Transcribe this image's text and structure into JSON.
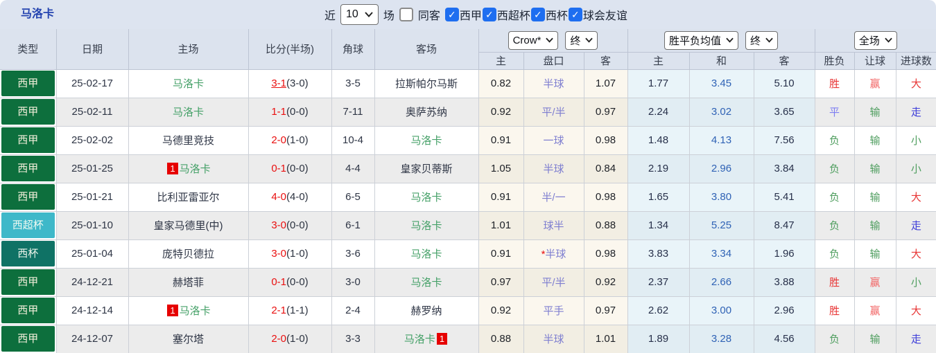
{
  "palette": {
    "topbar_bg": "#dde4f0",
    "header_bg": "#dce3ee",
    "title_blue": "#2544b0",
    "dark_text": "#2e3545",
    "score_red": "#e90f0f",
    "team_green": "#44a067",
    "handicap_violet": "#7e7ed0",
    "avg_draw_blue": "#2f62b5",
    "checkbox_blue": "#1e6ef0",
    "crow_bg": "#fbf7ee",
    "avg_bg": "#e9f4f9",
    "row_alt_bg": "#ececec",
    "result_red": "#e83535",
    "result_pink": "#f26666",
    "result_green": "#4f9e5f",
    "result_violet": "#7d7df2",
    "result_blue": "#3c3cd9",
    "badge_red": "#e60000",
    "league_colors": {
      "西甲": {
        "bg": "#0d6f3d",
        "text": "#f3efdb"
      },
      "西超杯": {
        "bg": "#3eb8c9",
        "text": "#f0faf2"
      },
      "西杯": {
        "bg": "#0f7265",
        "text": "#eef5ec"
      }
    }
  },
  "topbar": {
    "team_title": "马洛卡",
    "recent_label": "近",
    "count_value": "10",
    "matches_label": "场",
    "same_away_label": "同客",
    "same_away_checked": false,
    "filters": [
      {
        "label": "西甲",
        "checked": true
      },
      {
        "label": "西超杯",
        "checked": true
      },
      {
        "label": "西杯",
        "checked": true
      },
      {
        "label": "球会友谊",
        "checked": true
      }
    ]
  },
  "header": {
    "type": "类型",
    "date": "日期",
    "home": "主场",
    "score": "比分(半场)",
    "corner": "角球",
    "away": "客场",
    "odds_source_select": "Crow*",
    "odds_state_select": "终",
    "avg_select": "胜平负均值",
    "avg_state_select": "终",
    "scope_select": "全场",
    "sub_odds_home": "主",
    "sub_handicap": "盘口",
    "sub_odds_away": "客",
    "sub_avg_home": "主",
    "sub_avg_draw": "和",
    "sub_avg_away": "客",
    "sub_winloss": "胜负",
    "sub_handicap_result": "让球",
    "sub_goals": "进球数"
  },
  "rows": [
    {
      "league": "西甲",
      "date": "25-02-17",
      "home": {
        "name": "马洛卡",
        "green": true,
        "badge": null,
        "badge_pos": null
      },
      "score_ft": "3-1",
      "score_ht": "(3-0)",
      "score_underline": true,
      "corner": "3-5",
      "away": {
        "name": "拉斯帕尔马斯",
        "green": false,
        "badge": null,
        "badge_pos": null
      },
      "odds_home": "0.82",
      "handicap": "半球",
      "handicap_star": false,
      "odds_away": "1.07",
      "avg_home": "1.77",
      "avg_draw": "3.45",
      "avg_away": "5.10",
      "res_wl": {
        "text": "胜",
        "color": "red"
      },
      "res_let": {
        "text": "赢",
        "color": "pink"
      },
      "res_goal": {
        "text": "大",
        "color": "red"
      }
    },
    {
      "league": "西甲",
      "date": "25-02-11",
      "home": {
        "name": "马洛卡",
        "green": true,
        "badge": null,
        "badge_pos": null
      },
      "score_ft": "1-1",
      "score_ht": "(0-0)",
      "score_underline": false,
      "corner": "7-11",
      "away": {
        "name": "奥萨苏纳",
        "green": false,
        "badge": null,
        "badge_pos": null
      },
      "odds_home": "0.92",
      "handicap": "平/半",
      "handicap_star": false,
      "odds_away": "0.97",
      "avg_home": "2.24",
      "avg_draw": "3.02",
      "avg_away": "3.65",
      "res_wl": {
        "text": "平",
        "color": "violet"
      },
      "res_let": {
        "text": "输",
        "color": "green"
      },
      "res_goal": {
        "text": "走",
        "color": "blue"
      }
    },
    {
      "league": "西甲",
      "date": "25-02-02",
      "home": {
        "name": "马德里竞技",
        "green": false,
        "badge": null,
        "badge_pos": null
      },
      "score_ft": "2-0",
      "score_ht": "(1-0)",
      "score_underline": false,
      "corner": "10-4",
      "away": {
        "name": "马洛卡",
        "green": true,
        "badge": null,
        "badge_pos": null
      },
      "odds_home": "0.91",
      "handicap": "一球",
      "handicap_star": false,
      "odds_away": "0.98",
      "avg_home": "1.48",
      "avg_draw": "4.13",
      "avg_away": "7.56",
      "res_wl": {
        "text": "负",
        "color": "green"
      },
      "res_let": {
        "text": "输",
        "color": "green"
      },
      "res_goal": {
        "text": "小",
        "color": "green"
      }
    },
    {
      "league": "西甲",
      "date": "25-01-25",
      "home": {
        "name": "马洛卡",
        "green": true,
        "badge": "1",
        "badge_pos": "before"
      },
      "score_ft": "0-1",
      "score_ht": "(0-0)",
      "score_underline": false,
      "corner": "4-4",
      "away": {
        "name": "皇家贝蒂斯",
        "green": false,
        "badge": null,
        "badge_pos": null
      },
      "odds_home": "1.05",
      "handicap": "半球",
      "handicap_star": false,
      "odds_away": "0.84",
      "avg_home": "2.19",
      "avg_draw": "2.96",
      "avg_away": "3.84",
      "res_wl": {
        "text": "负",
        "color": "green"
      },
      "res_let": {
        "text": "输",
        "color": "green"
      },
      "res_goal": {
        "text": "小",
        "color": "green"
      }
    },
    {
      "league": "西甲",
      "date": "25-01-21",
      "home": {
        "name": "比利亚雷亚尔",
        "green": false,
        "badge": null,
        "badge_pos": null
      },
      "score_ft": "4-0",
      "score_ht": "(4-0)",
      "score_underline": false,
      "corner": "6-5",
      "away": {
        "name": "马洛卡",
        "green": true,
        "badge": null,
        "badge_pos": null
      },
      "odds_home": "0.91",
      "handicap": "半/一",
      "handicap_star": false,
      "odds_away": "0.98",
      "avg_home": "1.65",
      "avg_draw": "3.80",
      "avg_away": "5.41",
      "res_wl": {
        "text": "负",
        "color": "green"
      },
      "res_let": {
        "text": "输",
        "color": "green"
      },
      "res_goal": {
        "text": "大",
        "color": "red"
      }
    },
    {
      "league": "西超杯",
      "date": "25-01-10",
      "home": {
        "name": "皇家马德里(中)",
        "green": false,
        "badge": null,
        "badge_pos": null
      },
      "score_ft": "3-0",
      "score_ht": "(0-0)",
      "score_underline": false,
      "corner": "6-1",
      "away": {
        "name": "马洛卡",
        "green": true,
        "badge": null,
        "badge_pos": null
      },
      "odds_home": "1.01",
      "handicap": "球半",
      "handicap_star": false,
      "odds_away": "0.88",
      "avg_home": "1.34",
      "avg_draw": "5.25",
      "avg_away": "8.47",
      "res_wl": {
        "text": "负",
        "color": "green"
      },
      "res_let": {
        "text": "输",
        "color": "green"
      },
      "res_goal": {
        "text": "走",
        "color": "blue"
      }
    },
    {
      "league": "西杯",
      "date": "25-01-04",
      "home": {
        "name": "庞特贝德拉",
        "green": false,
        "badge": null,
        "badge_pos": null
      },
      "score_ft": "3-0",
      "score_ht": "(1-0)",
      "score_underline": false,
      "corner": "3-6",
      "away": {
        "name": "马洛卡",
        "green": true,
        "badge": null,
        "badge_pos": null
      },
      "odds_home": "0.91",
      "handicap": "半球",
      "handicap_star": true,
      "odds_away": "0.98",
      "avg_home": "3.83",
      "avg_draw": "3.34",
      "avg_away": "1.96",
      "res_wl": {
        "text": "负",
        "color": "green"
      },
      "res_let": {
        "text": "输",
        "color": "green"
      },
      "res_goal": {
        "text": "大",
        "color": "red"
      }
    },
    {
      "league": "西甲",
      "date": "24-12-21",
      "home": {
        "name": "赫塔菲",
        "green": false,
        "badge": null,
        "badge_pos": null
      },
      "score_ft": "0-1",
      "score_ht": "(0-0)",
      "score_underline": false,
      "corner": "3-0",
      "away": {
        "name": "马洛卡",
        "green": true,
        "badge": null,
        "badge_pos": null
      },
      "odds_home": "0.97",
      "handicap": "平/半",
      "handicap_star": false,
      "odds_away": "0.92",
      "avg_home": "2.37",
      "avg_draw": "2.66",
      "avg_away": "3.88",
      "res_wl": {
        "text": "胜",
        "color": "red"
      },
      "res_let": {
        "text": "赢",
        "color": "pink"
      },
      "res_goal": {
        "text": "小",
        "color": "green"
      }
    },
    {
      "league": "西甲",
      "date": "24-12-14",
      "home": {
        "name": "马洛卡",
        "green": true,
        "badge": "1",
        "badge_pos": "before"
      },
      "score_ft": "2-1",
      "score_ht": "(1-1)",
      "score_underline": false,
      "corner": "2-4",
      "away": {
        "name": "赫罗纳",
        "green": false,
        "badge": null,
        "badge_pos": null
      },
      "odds_home": "0.92",
      "handicap": "平手",
      "handicap_star": false,
      "odds_away": "0.97",
      "avg_home": "2.62",
      "avg_draw": "3.00",
      "avg_away": "2.96",
      "res_wl": {
        "text": "胜",
        "color": "red"
      },
      "res_let": {
        "text": "赢",
        "color": "pink"
      },
      "res_goal": {
        "text": "大",
        "color": "red"
      }
    },
    {
      "league": "西甲",
      "date": "24-12-07",
      "home": {
        "name": "塞尔塔",
        "green": false,
        "badge": null,
        "badge_pos": null
      },
      "score_ft": "2-0",
      "score_ht": "(1-0)",
      "score_underline": false,
      "corner": "3-3",
      "away": {
        "name": "马洛卡",
        "green": true,
        "badge": "1",
        "badge_pos": "after"
      },
      "odds_home": "0.88",
      "handicap": "半球",
      "handicap_star": false,
      "odds_away": "1.01",
      "avg_home": "1.89",
      "avg_draw": "3.28",
      "avg_away": "4.56",
      "res_wl": {
        "text": "负",
        "color": "green"
      },
      "res_let": {
        "text": "输",
        "color": "green"
      },
      "res_goal": {
        "text": "走",
        "color": "blue"
      }
    }
  ]
}
